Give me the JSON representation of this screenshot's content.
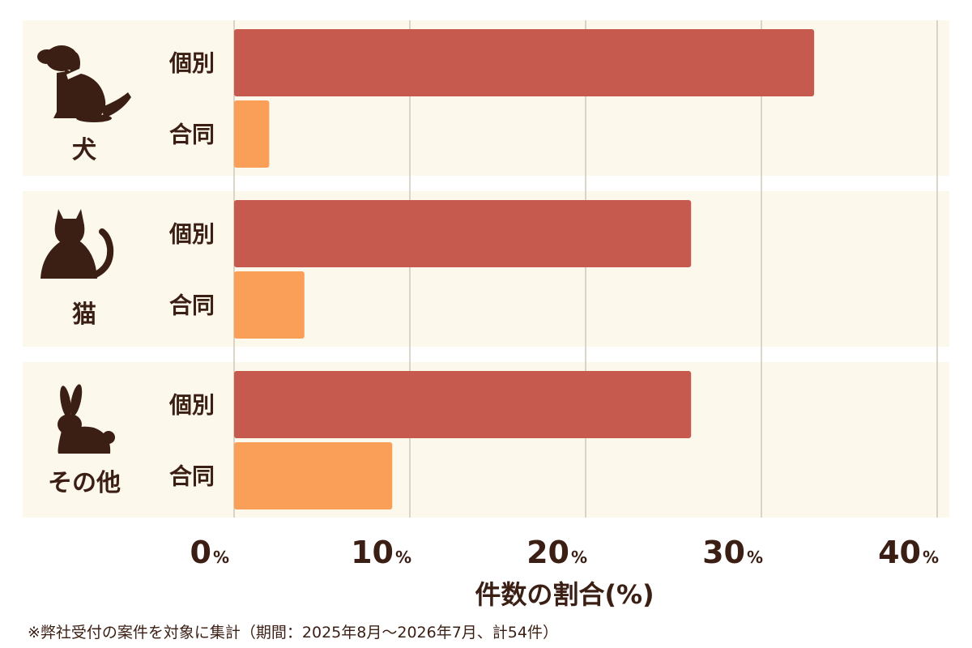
{
  "chart_data": {
    "type": "bar",
    "orientation": "horizontal",
    "groups": [
      {
        "name": "犬",
        "icon": "dog-icon"
      },
      {
        "name": "猫",
        "icon": "cat-icon"
      },
      {
        "name": "その他",
        "icon": "rabbit-icon"
      }
    ],
    "bar_labels": [
      "個別",
      "合同"
    ],
    "series": [
      {
        "name": "個別",
        "values": [
          33,
          26,
          26
        ]
      },
      {
        "name": "合同",
        "values": [
          2,
          4,
          9
        ]
      }
    ],
    "xlim": [
      0,
      40
    ],
    "x_ticks": [
      {
        "value": 0,
        "num": "0",
        "unit": "%"
      },
      {
        "value": 10,
        "num": "10",
        "unit": "%"
      },
      {
        "value": 20,
        "num": "20",
        "unit": "%"
      },
      {
        "value": 30,
        "num": "30",
        "unit": "%"
      },
      {
        "value": 40,
        "num": "40",
        "unit": "%"
      }
    ],
    "xlabel": "件数の割合(%)",
    "grid": true,
    "colors": {
      "個別": "#c75a4e",
      "合同": "#fa9f58",
      "panel": "#fdf8ec",
      "text": "#3b1f14",
      "grid": "#cfc8bc"
    }
  },
  "footnote": "※弊社受付の案件を対象に集計（期間：2025年8月～2026年7月、計54件）"
}
